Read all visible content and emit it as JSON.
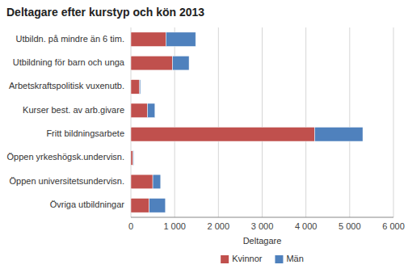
{
  "chart_data": {
    "type": "bar",
    "orientation": "horizontal",
    "stacked": true,
    "title": "Deltagare efter kurstyp och kön 2013",
    "categories": [
      "Utbildn. på mindre än 6 tim.",
      "Utbildning för barn och unga",
      "Arbetskraftspolitisk vuxenutb.",
      "Kurser best. av arb.givare",
      "Fritt bildningsarbete",
      "Öppen yrkeshögsk.undervisn.",
      "Öppen universitetsundervisn.",
      "Övriga utbildningar"
    ],
    "series": [
      {
        "name": "Kvinnor",
        "color": "#C0504D",
        "values": [
          800,
          950,
          200,
          380,
          4200,
          50,
          500,
          420
        ]
      },
      {
        "name": "Män",
        "color": "#4F81BD",
        "values": [
          680,
          380,
          20,
          170,
          1100,
          15,
          180,
          370
        ]
      }
    ],
    "xlim": [
      0,
      6000
    ],
    "xticks": [
      0,
      {
        "value": 1000,
        "label": "1 000"
      },
      {
        "value": 2000,
        "label": "2 000"
      },
      {
        "value": 3000,
        "label": "3 000"
      },
      {
        "value": 4000,
        "label": "4 000"
      },
      {
        "value": 5000,
        "label": "5 000"
      },
      {
        "value": 6000,
        "label": "6 000"
      }
    ],
    "xlabel": "Deltagare",
    "grid": true,
    "legend": "bottom"
  }
}
